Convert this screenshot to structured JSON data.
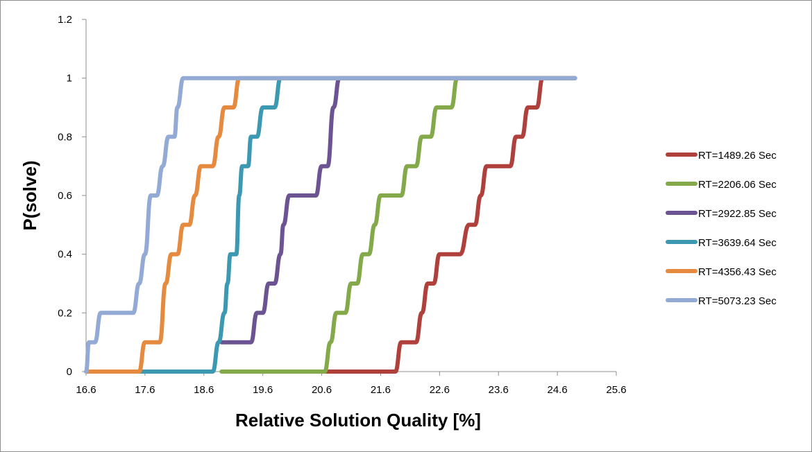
{
  "chart_data": {
    "type": "line",
    "xlabel": "Relative Solution Quality [%]",
    "ylabel": "P(solve)",
    "xlim": [
      16.6,
      25.6
    ],
    "ylim": [
      0,
      1.2
    ],
    "x_ticks": [
      "16.6",
      "17.6",
      "18.6",
      "19.6",
      "20.6",
      "21.6",
      "22.6",
      "23.6",
      "24.6",
      "25.6"
    ],
    "y_ticks": [
      "0",
      "0.2",
      "0.4",
      "0.6",
      "0.8",
      "1",
      "1.2"
    ],
    "grid": false,
    "legend_position": "right",
    "series": [
      {
        "name": "RT=1489.26 Sec",
        "color": "#b0403c",
        "points": [
          [
            20.6,
            0
          ],
          [
            21.85,
            0
          ],
          [
            21.95,
            0.1
          ],
          [
            22.2,
            0.1
          ],
          [
            22.3,
            0.2
          ],
          [
            22.4,
            0.3
          ],
          [
            22.5,
            0.3
          ],
          [
            22.6,
            0.4
          ],
          [
            22.95,
            0.4
          ],
          [
            23.1,
            0.5
          ],
          [
            23.2,
            0.5
          ],
          [
            23.3,
            0.6
          ],
          [
            23.4,
            0.7
          ],
          [
            23.8,
            0.7
          ],
          [
            23.9,
            0.8
          ],
          [
            24.0,
            0.8
          ],
          [
            24.1,
            0.9
          ],
          [
            24.25,
            0.9
          ],
          [
            24.35,
            1.0
          ],
          [
            24.9,
            1.0
          ]
        ]
      },
      {
        "name": "RT=2206.06 Sec",
        "color": "#84a94a",
        "points": [
          [
            18.9,
            0
          ],
          [
            20.65,
            0
          ],
          [
            20.75,
            0.1
          ],
          [
            20.85,
            0.2
          ],
          [
            21.0,
            0.2
          ],
          [
            21.1,
            0.3
          ],
          [
            21.2,
            0.3
          ],
          [
            21.3,
            0.4
          ],
          [
            21.4,
            0.4
          ],
          [
            21.5,
            0.5
          ],
          [
            21.6,
            0.6
          ],
          [
            21.95,
            0.6
          ],
          [
            22.05,
            0.7
          ],
          [
            22.2,
            0.7
          ],
          [
            22.3,
            0.8
          ],
          [
            22.45,
            0.8
          ],
          [
            22.55,
            0.9
          ],
          [
            22.8,
            0.9
          ],
          [
            22.9,
            1.0
          ],
          [
            24.9,
            1.0
          ]
        ]
      },
      {
        "name": "RT=2922.85 Sec",
        "color": "#6c5391",
        "points": [
          [
            18.9,
            0.1
          ],
          [
            19.4,
            0.1
          ],
          [
            19.5,
            0.2
          ],
          [
            19.6,
            0.2
          ],
          [
            19.7,
            0.3
          ],
          [
            19.8,
            0.3
          ],
          [
            19.9,
            0.4
          ],
          [
            19.95,
            0.5
          ],
          [
            20.05,
            0.6
          ],
          [
            20.5,
            0.6
          ],
          [
            20.6,
            0.7
          ],
          [
            20.7,
            0.7
          ],
          [
            20.8,
            0.9
          ],
          [
            20.9,
            1.0
          ],
          [
            24.9,
            1.0
          ]
        ]
      },
      {
        "name": "RT=3639.64 Sec",
        "color": "#3d99b1",
        "points": [
          [
            17.5,
            0
          ],
          [
            18.75,
            0
          ],
          [
            18.85,
            0.1
          ],
          [
            18.95,
            0.2
          ],
          [
            19.0,
            0.3
          ],
          [
            19.05,
            0.4
          ],
          [
            19.15,
            0.4
          ],
          [
            19.2,
            0.6
          ],
          [
            19.25,
            0.7
          ],
          [
            19.35,
            0.7
          ],
          [
            19.4,
            0.8
          ],
          [
            19.5,
            0.8
          ],
          [
            19.6,
            0.9
          ],
          [
            19.8,
            0.9
          ],
          [
            19.9,
            1.0
          ],
          [
            24.9,
            1.0
          ]
        ]
      },
      {
        "name": "RT=4356.43 Sec",
        "color": "#e58a3e",
        "points": [
          [
            16.6,
            0
          ],
          [
            17.5,
            0
          ],
          [
            17.6,
            0.1
          ],
          [
            17.85,
            0.1
          ],
          [
            17.95,
            0.3
          ],
          [
            18.05,
            0.4
          ],
          [
            18.15,
            0.4
          ],
          [
            18.25,
            0.5
          ],
          [
            18.35,
            0.5
          ],
          [
            18.45,
            0.6
          ],
          [
            18.55,
            0.7
          ],
          [
            18.75,
            0.7
          ],
          [
            18.85,
            0.8
          ],
          [
            18.95,
            0.9
          ],
          [
            19.1,
            0.9
          ],
          [
            19.2,
            1.0
          ],
          [
            24.9,
            1.0
          ]
        ]
      },
      {
        "name": "RT=5073.23 Sec",
        "color": "#93aad4",
        "points": [
          [
            16.6,
            0
          ],
          [
            16.65,
            0.1
          ],
          [
            16.75,
            0.1
          ],
          [
            16.85,
            0.2
          ],
          [
            17.4,
            0.2
          ],
          [
            17.5,
            0.3
          ],
          [
            17.6,
            0.4
          ],
          [
            17.7,
            0.6
          ],
          [
            17.8,
            0.6
          ],
          [
            17.9,
            0.7
          ],
          [
            18.0,
            0.8
          ],
          [
            18.1,
            0.8
          ],
          [
            18.15,
            0.9
          ],
          [
            18.25,
            1.0
          ],
          [
            24.9,
            1.0
          ]
        ]
      }
    ]
  }
}
